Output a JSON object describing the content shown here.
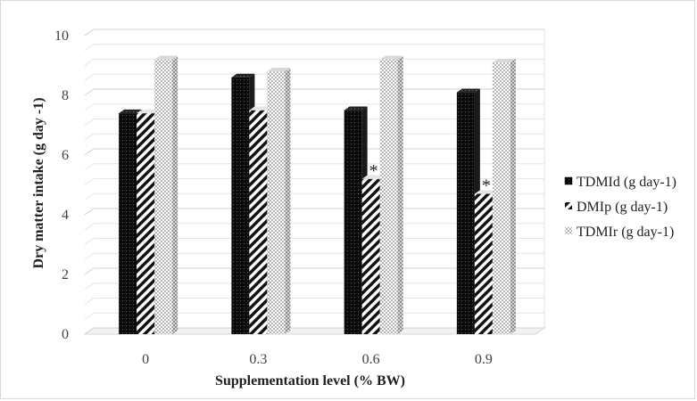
{
  "chart_data": {
    "type": "bar",
    "style": "3d-clustered-column",
    "categories": [
      "0",
      "0.3",
      "0.6",
      "0.9"
    ],
    "series": [
      {
        "name": "TDMId (g day-1)",
        "values": [
          7.4,
          8.6,
          7.5,
          8.1
        ],
        "pattern": "black-dotted"
      },
      {
        "name": "DMIp (g day-1)",
        "values": [
          7.4,
          7.5,
          5.2,
          4.7
        ],
        "pattern": "diagonal-stripes"
      },
      {
        "name": "TDMIr (g day-1)",
        "values": [
          9.2,
          8.8,
          9.2,
          9.1
        ],
        "pattern": "gray-checker"
      }
    ],
    "annotations": [
      {
        "text": "*",
        "category": "0.6",
        "series": "DMIp (g day-1)"
      },
      {
        "text": "*",
        "category": "0.9",
        "series": "DMIp (g day-1)"
      }
    ],
    "xlabel": "Supplementation  level (% BW)",
    "ylabel": "Dry matter intake (g day -1)",
    "ylim": [
      0,
      10
    ],
    "yticks": [
      0,
      2,
      4,
      6,
      8,
      10
    ],
    "grid": true,
    "legend_position": "right"
  }
}
